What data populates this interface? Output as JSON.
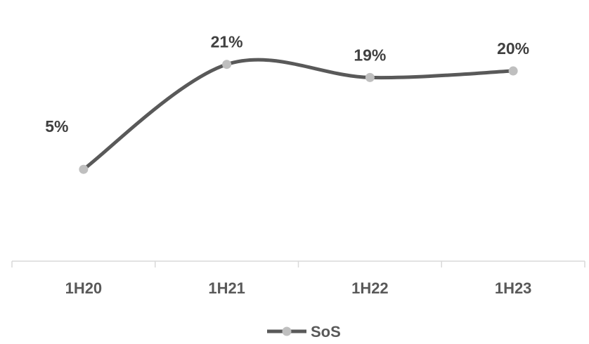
{
  "chart_data": {
    "type": "line",
    "smooth": true,
    "categories": [
      "1H20",
      "1H21",
      "1H22",
      "1H23"
    ],
    "series": [
      {
        "name": "SoS",
        "values": [
          5,
          21,
          19,
          20
        ],
        "data_labels": [
          "5%",
          "21%",
          "19%",
          "20%"
        ],
        "line_color": "#595959",
        "marker_color": "#bfbfbf"
      }
    ],
    "ylim": [
      -9,
      26
    ],
    "grid": false,
    "legend": "bottom-center",
    "axis_color": "#d9d9d9"
  }
}
